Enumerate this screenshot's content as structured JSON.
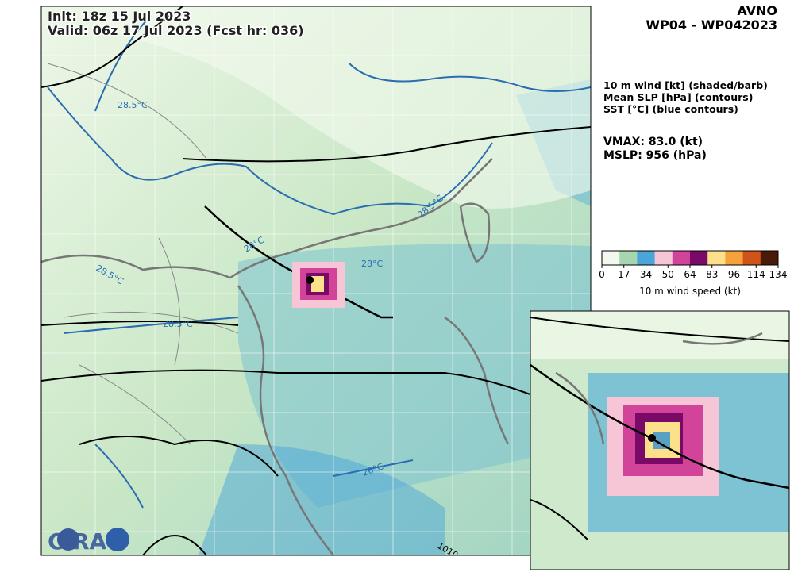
{
  "header": {
    "init": "Init:   18z 15 Jul 2023",
    "valid": "Valid: 06z 17 Jul 2023 (Fcst hr: 036)"
  },
  "title": {
    "model": "AVNO",
    "storm": "WP04 - WP042023"
  },
  "legend": {
    "lines": [
      "10 m wind [kt] (shaded/barb)",
      "Mean SLP [hPa] (contours)",
      "SST [°C] (blue contours)"
    ]
  },
  "stats": {
    "vmax": "VMAX:  83.0 (kt)",
    "mslp": "MSLP:  956 (hPa)"
  },
  "colorbar": {
    "ticks": [
      0,
      17,
      34,
      50,
      64,
      83,
      96,
      114,
      134
    ],
    "colors": [
      "#f4f9f0",
      "#a6d6b0",
      "#4aa6d8",
      "#f6c6d6",
      "#d2449a",
      "#7a0a68",
      "#fde08a",
      "#f5a23a",
      "#d0541a",
      "#4a1a08"
    ],
    "label": "10 m wind speed (kt)"
  },
  "map": {
    "contour_labels": [
      "28.5°C",
      "28.5°C",
      "28°C",
      "28°C",
      "28.5°C",
      "28.5°C",
      "26°C",
      "1010"
    ]
  },
  "logo": "CIRA"
}
